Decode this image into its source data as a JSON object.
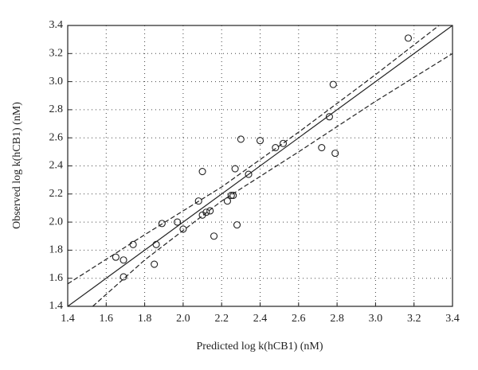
{
  "chart_data": {
    "type": "scatter",
    "x_label": "Predicted log k(hCB1) (nM)",
    "y_label": "Observed log k(hCB1) (nM)",
    "xlim": [
      1.4,
      3.4
    ],
    "ylim": [
      1.4,
      3.4
    ],
    "xticks": [
      1.4,
      1.6,
      1.8,
      {
        "value": 2,
        "label": "2.0"
      },
      2.2,
      2.4,
      2.6,
      2.8,
      {
        "value": 3,
        "label": "3.0"
      },
      3.2,
      3.4
    ],
    "yticks": [
      1.4,
      1.6,
      1.8,
      {
        "value": 2,
        "label": "2.0"
      },
      2.2,
      2.4,
      2.6,
      2.8,
      {
        "value": 3,
        "label": "3.0"
      },
      3.2,
      3.4
    ],
    "grid": true,
    "series": [
      {
        "color": "#222222",
        "x": [
          1.65,
          1.69,
          1.74,
          1.69,
          1.85,
          1.86,
          1.89,
          1.97,
          2.0,
          2.08,
          2.1,
          2.1,
          2.12,
          2.14,
          2.16,
          2.23,
          2.25,
          2.26,
          2.27,
          2.28,
          2.3,
          2.34,
          2.4,
          2.48,
          2.52,
          2.72,
          2.79,
          2.76,
          2.78,
          3.17
        ],
        "values": [
          1.75,
          1.73,
          1.84,
          1.61,
          1.7,
          1.84,
          1.99,
          2.0,
          1.95,
          2.15,
          2.36,
          2.05,
          2.07,
          2.08,
          1.9,
          2.15,
          2.19,
          2.19,
          2.38,
          1.98,
          2.59,
          2.34,
          2.58,
          2.53,
          2.56,
          2.53,
          2.49,
          2.75,
          2.98,
          3.31
        ]
      }
    ],
    "lines": [
      {
        "style": "solid",
        "x": [
          1.4,
          3.4
        ],
        "values": [
          1.4,
          3.4
        ]
      },
      {
        "style": "dashed",
        "x": [
          1.4,
          1.8,
          2.2,
          2.6,
          3.0,
          3.33
        ],
        "values": [
          1.56,
          1.91,
          2.25,
          2.64,
          3.05,
          3.4
        ]
      },
      {
        "style": "dashed",
        "x": [
          1.53,
          1.8,
          2.2,
          2.6,
          3.0,
          3.4
        ],
        "values": [
          1.4,
          1.73,
          2.15,
          2.5,
          2.86,
          3.2
        ]
      }
    ]
  }
}
